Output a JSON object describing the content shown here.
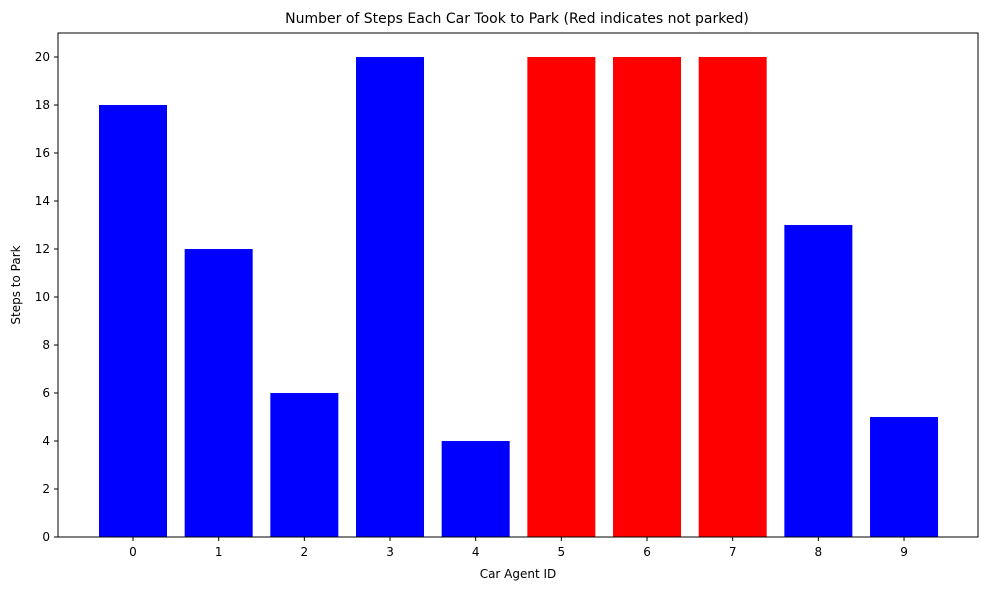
{
  "chart_data": {
    "type": "bar",
    "title": "Number of Steps Each Car Took to Park (Red indicates not parked)",
    "xlabel": "Car Agent ID",
    "ylabel": "Steps to Park",
    "categories": [
      "0",
      "1",
      "2",
      "3",
      "4",
      "5",
      "6",
      "7",
      "8",
      "9"
    ],
    "values": [
      18,
      12,
      6,
      20,
      4,
      20,
      20,
      20,
      13,
      5
    ],
    "parked": [
      true,
      true,
      true,
      true,
      true,
      false,
      false,
      false,
      true,
      true
    ],
    "colors": {
      "parked": "#0000ff",
      "not_parked": "#ff0000"
    },
    "ylim": [
      0,
      21
    ],
    "yticks": [
      0,
      2,
      4,
      6,
      8,
      10,
      12,
      14,
      16,
      18,
      20
    ],
    "grid": false
  }
}
